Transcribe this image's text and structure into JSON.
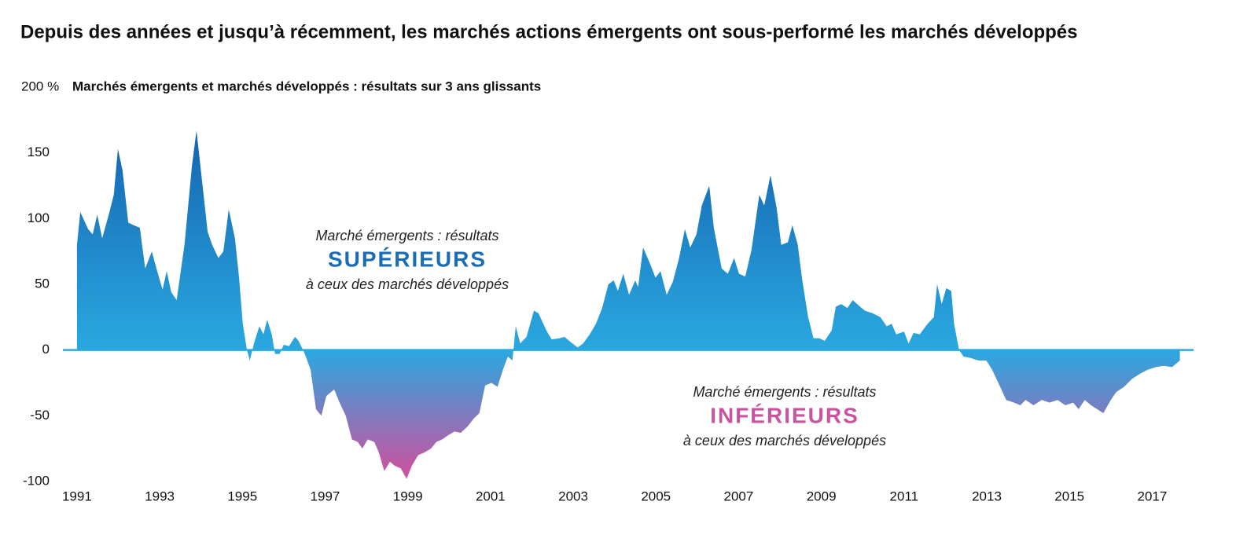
{
  "chart_data": {
    "type": "area",
    "title": "Depuis des années et jusqu’à récemment, les marchés actions émergents ont sous-performé les marchés développés",
    "subtitle": "Marchés émergents et marchés développés : résultats sur 3 ans glissants",
    "x": [
      1991.0,
      1991.08,
      1991.27,
      1991.38,
      1991.49,
      1991.61,
      1991.76,
      1991.89,
      1991.99,
      1992.1,
      1992.24,
      1992.37,
      1992.52,
      1992.65,
      1992.81,
      1992.94,
      1993.07,
      1993.17,
      1993.28,
      1993.41,
      1993.6,
      1993.78,
      1993.89,
      1994.02,
      1994.16,
      1994.27,
      1994.42,
      1994.54,
      1994.67,
      1994.82,
      1994.92,
      1995.01,
      1995.11,
      1995.18,
      1995.28,
      1995.41,
      1995.51,
      1995.6,
      1995.71,
      1995.79,
      1995.9,
      1996.0,
      1996.13,
      1996.27,
      1996.36,
      1996.51,
      1996.65,
      1996.78,
      1996.91,
      1997.03,
      1997.22,
      1997.35,
      1997.5,
      1997.65,
      1997.79,
      1997.9,
      1998.03,
      1998.19,
      1998.3,
      1998.43,
      1998.57,
      1998.68,
      1998.83,
      1998.97,
      1999.1,
      1999.25,
      1999.4,
      1999.56,
      1999.69,
      1999.83,
      1999.97,
      2000.13,
      2000.28,
      2000.45,
      2000.6,
      2000.73,
      2000.87,
      2001.02,
      2001.17,
      2001.3,
      2001.42,
      2001.53,
      2001.61,
      2001.72,
      2001.87,
      2002.05,
      2002.16,
      2002.35,
      2002.48,
      2002.67,
      2002.79,
      2002.94,
      2003.11,
      2003.24,
      2003.4,
      2003.55,
      2003.7,
      2003.85,
      2003.98,
      2004.08,
      2004.21,
      2004.35,
      2004.5,
      2004.57,
      2004.69,
      2004.84,
      2004.99,
      2005.11,
      2005.26,
      2005.41,
      2005.56,
      2005.7,
      2005.83,
      2005.98,
      2006.11,
      2006.29,
      2006.4,
      2006.59,
      2006.74,
      2006.89,
      2007.01,
      2007.16,
      2007.31,
      2007.5,
      2007.62,
      2007.77,
      2007.92,
      2008.03,
      2008.19,
      2008.3,
      2008.43,
      2008.53,
      2008.68,
      2008.81,
      2008.95,
      2009.08,
      2009.25,
      2009.35,
      2009.48,
      2009.63,
      2009.76,
      2009.9,
      2010.05,
      2010.24,
      2010.43,
      2010.58,
      2010.7,
      2010.81,
      2011.0,
      2011.11,
      2011.23,
      2011.38,
      2011.57,
      2011.72,
      2011.8,
      2011.91,
      2012.02,
      2012.14,
      2012.21,
      2012.33,
      2012.44,
      2012.61,
      2012.8,
      2012.99,
      2013.13,
      2013.28,
      2013.47,
      2013.66,
      2013.81,
      2013.94,
      2014.13,
      2014.33,
      2014.52,
      2014.71,
      2014.9,
      2015.09,
      2015.22,
      2015.37,
      2015.52,
      2015.67,
      2015.82,
      2016.0,
      2016.13,
      2016.32,
      2016.51,
      2016.71,
      2016.89,
      2017.09,
      2017.28,
      2017.48,
      2017.67
    ],
    "values": [
      80,
      105,
      92,
      88,
      103,
      85,
      102,
      118,
      153,
      137,
      97,
      95,
      93,
      62,
      75,
      60,
      46,
      60,
      44,
      38,
      80,
      140,
      167,
      130,
      90,
      80,
      70,
      75,
      107,
      85,
      55,
      20,
      0,
      -8,
      5,
      18,
      12,
      23,
      12,
      -3,
      -3,
      4,
      3,
      10,
      7,
      -3,
      -15,
      -45,
      -50,
      -35,
      -30,
      -40,
      -50,
      -68,
      -70,
      -75,
      -68,
      -70,
      -78,
      -92,
      -85,
      -88,
      -90,
      -98,
      -88,
      -80,
      -78,
      -75,
      -70,
      -68,
      -65,
      -62,
      -63,
      -58,
      -52,
      -48,
      -27,
      -25,
      -28,
      -15,
      -5,
      -8,
      18,
      5,
      10,
      30,
      28,
      15,
      8,
      9,
      10,
      6,
      2,
      5,
      12,
      20,
      32,
      50,
      53,
      45,
      58,
      42,
      53,
      48,
      78,
      67,
      55,
      60,
      42,
      52,
      70,
      92,
      78,
      88,
      110,
      125,
      93,
      62,
      58,
      70,
      58,
      56,
      76,
      118,
      110,
      133,
      108,
      80,
      82,
      95,
      80,
      55,
      25,
      9,
      9,
      7,
      15,
      33,
      35,
      32,
      38,
      34,
      30,
      28,
      25,
      18,
      20,
      12,
      14,
      5,
      13,
      12,
      20,
      25,
      50,
      35,
      47,
      45,
      20,
      0,
      -5,
      -6,
      -8,
      -8,
      -15,
      -25,
      -38,
      -40,
      -42,
      -38,
      -42,
      -38,
      -40,
      -38,
      -42,
      -40,
      -45,
      -38,
      -42,
      -45,
      -48,
      -38,
      -32,
      -28,
      -22,
      -18,
      -15,
      -13,
      -12,
      -13,
      -8
    ],
    "xlim": [
      1990.66,
      2018.0
    ],
    "xticks": [
      1991,
      1993,
      1995,
      1997,
      1999,
      2001,
      2003,
      2005,
      2007,
      2009,
      2011,
      2013,
      2015,
      2017
    ],
    "ylim": [
      -100,
      200
    ],
    "yticks": [
      -100,
      -50,
      0,
      50,
      100,
      150,
      {
        "value": 200,
        "label": "200 %"
      }
    ],
    "colors": {
      "top": "#1565b0",
      "zero": "#2aa8e0",
      "bottom": "#d24f9d"
    },
    "annotations": [
      {
        "lines": [
          "Marché émergents : résultats",
          "SUPÉRIEURS",
          "à ceux des marchés développés"
        ],
        "color": "#1a6cb5"
      },
      {
        "lines": [
          "Marché émergents : résultats",
          "INFÉRIEURS",
          "à ceux des marchés développés"
        ],
        "color": "#c9539c"
      }
    ]
  }
}
